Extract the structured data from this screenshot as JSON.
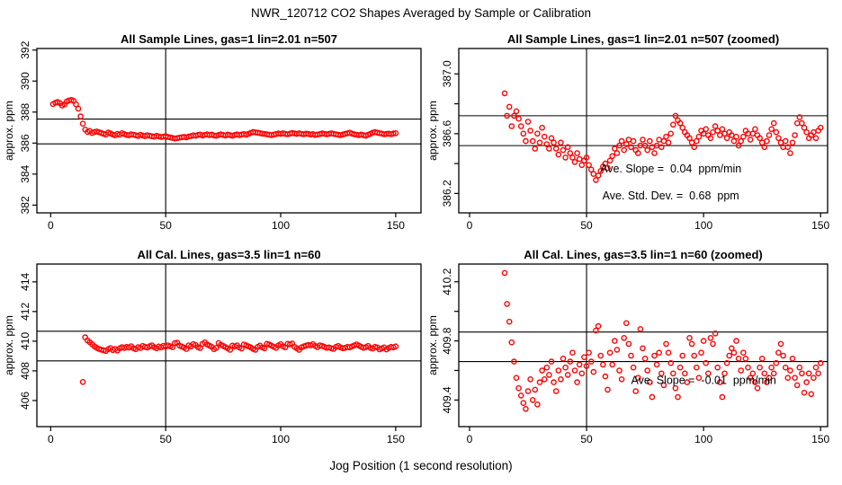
{
  "figure": {
    "title": "NWR_120712  CO2 Shapes Averaged by Sample or Calibration",
    "xlabel": "Jog Position (1 second resolution)",
    "background_color": "#ffffff",
    "axis_color": "#000000",
    "point_color": "#ff0000"
  },
  "chart_data": {
    "type": "scatter",
    "marker": "open-circle",
    "grid": "off",
    "panels": [
      {
        "title": "All Sample Lines, gas=1 lin=2.01 n=507",
        "ylabel": "approx. ppm",
        "series": "sample",
        "xlim": [
          -6,
          161
        ],
        "ylim": [
          381.5,
          392.1
        ],
        "xticks": [
          0,
          50,
          100,
          150
        ],
        "yticks": [
          {
            "v": 382,
            "label": "382"
          },
          {
            "v": 384,
            "label": "384"
          },
          {
            "v": 386,
            "label": "386"
          },
          {
            "v": 388,
            "label": "388"
          },
          {
            "v": 390,
            "label": "390"
          },
          {
            "v": 392,
            "label": "392"
          }
        ],
        "vlines": [
          50
        ],
        "hlines": [
          387.55,
          385.95
        ],
        "annotations": []
      },
      {
        "title": "All Sample Lines, gas=1 lin=2.01 n=507 (zoomed)",
        "ylabel": "approx. ppm",
        "series": "sample",
        "xlim": [
          -4.6,
          153
        ],
        "ylim": [
          386.07,
          387.17
        ],
        "xticks": [
          0,
          50,
          100,
          150
        ],
        "yticks": [
          {
            "v": 386.2,
            "label": "386.2"
          },
          {
            "v": 386.4,
            "label": ""
          },
          {
            "v": 386.6,
            "label": "386.6"
          },
          {
            "v": 386.8,
            "label": ""
          },
          {
            "v": 387.0,
            "label": "387.0"
          }
        ],
        "vlines": [
          50
        ],
        "hlines": [
          386.72,
          386.52
        ],
        "annotations": [
          {
            "x": 86,
            "y": 386.34,
            "text": "Ave. Slope =  0.04  ppm/min"
          },
          {
            "x": 86,
            "y": 386.16,
            "text": "Ave. Std. Dev. =  0.68  ppm"
          }
        ]
      },
      {
        "title": "All Cal. Lines, gas=3.5 lin=1 n=60",
        "ylabel": "approx. ppm",
        "series": "cal",
        "xlim": [
          -6,
          161
        ],
        "ylim": [
          404.24,
          415.2
        ],
        "xticks": [
          0,
          50,
          100,
          150
        ],
        "yticks": [
          {
            "v": 406,
            "label": "406"
          },
          {
            "v": 408,
            "label": "408"
          },
          {
            "v": 410,
            "label": "410"
          },
          {
            "v": 412,
            "label": "412"
          },
          {
            "v": 414,
            "label": "414"
          }
        ],
        "vlines": [
          50
        ],
        "hlines": [
          410.67,
          408.67
        ],
        "annotations": []
      },
      {
        "title": "All Cal. Lines, gas=3.5 lin=1 n=60 (zoomed)",
        "ylabel": "approx. ppm",
        "series": "cal",
        "xlim": [
          -4.6,
          153
        ],
        "ylim": [
          409.22,
          410.32
        ],
        "xticks": [
          0,
          50,
          100,
          150
        ],
        "yticks": [
          {
            "v": 409.4,
            "label": "409.4"
          },
          {
            "v": 409.6,
            "label": ""
          },
          {
            "v": 409.8,
            "label": "409.8"
          },
          {
            "v": 410.0,
            "label": ""
          },
          {
            "v": 410.2,
            "label": "410.2"
          }
        ],
        "vlines": [
          50
        ],
        "hlines": [
          409.86,
          409.66
        ],
        "annotations": [
          {
            "x": 100,
            "y": 409.51,
            "text": "Ave. Slope =  -0.01  ppm/min"
          }
        ]
      }
    ],
    "series": {
      "sample": [
        [
          1,
          388.52
        ],
        [
          2,
          388.6
        ],
        [
          3,
          388.65
        ],
        [
          4,
          388.58
        ],
        [
          5,
          388.42
        ],
        [
          6,
          388.5
        ],
        [
          7,
          388.68
        ],
        [
          8,
          388.75
        ],
        [
          9,
          388.78
        ],
        [
          10,
          388.72
        ],
        [
          11,
          388.5
        ],
        [
          12,
          388.22
        ],
        [
          13,
          387.72
        ],
        [
          14,
          387.25
        ],
        [
          15,
          386.87
        ],
        [
          16,
          386.72
        ],
        [
          17,
          386.78
        ],
        [
          18,
          386.65
        ],
        [
          19,
          386.72
        ],
        [
          20,
          386.75
        ],
        [
          21,
          386.7
        ],
        [
          22,
          386.65
        ],
        [
          23,
          386.6
        ],
        [
          24,
          386.55
        ],
        [
          25,
          386.68
        ],
        [
          26,
          386.62
        ],
        [
          27,
          386.55
        ],
        [
          28,
          386.5
        ],
        [
          29,
          386.6
        ],
        [
          30,
          386.54
        ],
        [
          31,
          386.64
        ],
        [
          32,
          386.58
        ],
        [
          33,
          386.53
        ],
        [
          34,
          386.5
        ],
        [
          35,
          386.57
        ],
        [
          36,
          386.54
        ],
        [
          37,
          386.5
        ],
        [
          38,
          386.46
        ],
        [
          39,
          386.54
        ],
        [
          40,
          386.49
        ],
        [
          41,
          386.44
        ],
        [
          42,
          386.51
        ],
        [
          43,
          386.47
        ],
        [
          44,
          386.44
        ],
        [
          45,
          386.41
        ],
        [
          46,
          386.47
        ],
        [
          47,
          386.43
        ],
        [
          48,
          386.39
        ],
        [
          49,
          386.42
        ],
        [
          50,
          386.44
        ],
        [
          51,
          386.39
        ],
        [
          52,
          386.36
        ],
        [
          53,
          386.33
        ],
        [
          54,
          386.29
        ],
        [
          55,
          386.32
        ],
        [
          56,
          386.35
        ],
        [
          57,
          386.38
        ],
        [
          58,
          386.4
        ],
        [
          59,
          386.37
        ],
        [
          60,
          386.42
        ],
        [
          61,
          386.45
        ],
        [
          62,
          386.5
        ],
        [
          63,
          386.47
        ],
        [
          64,
          386.52
        ],
        [
          65,
          386.55
        ],
        [
          66,
          386.49
        ],
        [
          67,
          386.53
        ],
        [
          68,
          386.56
        ],
        [
          69,
          386.51
        ],
        [
          70,
          386.55
        ],
        [
          71,
          386.49
        ],
        [
          72,
          386.47
        ],
        [
          73,
          386.52
        ],
        [
          74,
          386.56
        ],
        [
          75,
          386.52
        ],
        [
          76,
          386.49
        ],
        [
          77,
          386.55
        ],
        [
          78,
          386.51
        ],
        [
          79,
          386.47
        ],
        [
          80,
          386.52
        ],
        [
          81,
          386.56
        ],
        [
          82,
          386.51
        ],
        [
          83,
          386.55
        ],
        [
          84,
          386.58
        ],
        [
          85,
          386.54
        ],
        [
          86,
          386.6
        ],
        [
          87,
          386.66
        ],
        [
          88,
          386.72
        ],
        [
          89,
          386.69
        ],
        [
          90,
          386.67
        ],
        [
          91,
          386.64
        ],
        [
          92,
          386.61
        ],
        [
          93,
          386.59
        ],
        [
          94,
          386.57
        ],
        [
          95,
          386.54
        ],
        [
          96,
          386.51
        ],
        [
          97,
          386.55
        ],
        [
          98,
          386.58
        ],
        [
          99,
          386.62
        ],
        [
          100,
          386.6
        ],
        [
          101,
          386.63
        ],
        [
          102,
          386.59
        ],
        [
          103,
          386.57
        ],
        [
          104,
          386.61
        ],
        [
          105,
          386.65
        ],
        [
          106,
          386.62
        ],
        [
          107,
          386.59
        ],
        [
          108,
          386.63
        ],
        [
          109,
          386.6
        ],
        [
          110,
          386.57
        ],
        [
          111,
          386.61
        ],
        [
          112,
          386.59
        ],
        [
          113,
          386.55
        ],
        [
          114,
          386.58
        ],
        [
          115,
          386.52
        ],
        [
          116,
          386.55
        ],
        [
          117,
          386.58
        ],
        [
          118,
          386.62
        ],
        [
          119,
          386.6
        ],
        [
          120,
          386.56
        ],
        [
          121,
          386.6
        ],
        [
          122,
          386.63
        ],
        [
          123,
          386.59
        ],
        [
          124,
          386.57
        ],
        [
          125,
          386.54
        ],
        [
          126,
          386.51
        ],
        [
          127,
          386.55
        ],
        [
          128,
          386.59
        ],
        [
          129,
          386.63
        ],
        [
          130,
          386.67
        ],
        [
          131,
          386.61
        ],
        [
          132,
          386.57
        ],
        [
          133,
          386.54
        ],
        [
          134,
          386.51
        ],
        [
          135,
          386.55
        ],
        [
          136,
          386.51
        ],
        [
          137,
          386.47
        ],
        [
          138,
          386.54
        ],
        [
          139,
          386.59
        ],
        [
          140,
          386.67
        ],
        [
          141,
          386.71
        ],
        [
          142,
          386.67
        ],
        [
          143,
          386.64
        ],
        [
          144,
          386.61
        ],
        [
          145,
          386.57
        ],
        [
          146,
          386.59
        ],
        [
          147,
          386.61
        ],
        [
          148,
          386.57
        ],
        [
          149,
          386.62
        ],
        [
          150,
          386.64
        ]
      ],
      "cal": [
        [
          14,
          407.25
        ],
        [
          15,
          410.26
        ],
        [
          16,
          410.05
        ],
        [
          17,
          409.93
        ],
        [
          18,
          409.79
        ],
        [
          19,
          409.66
        ],
        [
          20,
          409.55
        ],
        [
          21,
          409.48
        ],
        [
          22,
          409.43
        ],
        [
          23,
          409.38
        ],
        [
          24,
          409.34
        ],
        [
          25,
          409.46
        ],
        [
          26,
          409.54
        ],
        [
          27,
          409.4
        ],
        [
          28,
          409.47
        ],
        [
          29,
          409.37
        ],
        [
          30,
          409.52
        ],
        [
          31,
          409.6
        ],
        [
          32,
          409.54
        ],
        [
          33,
          409.62
        ],
        [
          34,
          409.57
        ],
        [
          35,
          409.66
        ],
        [
          36,
          409.52
        ],
        [
          37,
          409.46
        ],
        [
          38,
          409.6
        ],
        [
          39,
          409.54
        ],
        [
          40,
          409.68
        ],
        [
          41,
          409.62
        ],
        [
          42,
          409.57
        ],
        [
          43,
          409.66
        ],
        [
          44,
          409.72
        ],
        [
          45,
          409.6
        ],
        [
          46,
          409.52
        ],
        [
          47,
          409.64
        ],
        [
          48,
          409.58
        ],
        [
          49,
          409.69
        ],
        [
          50,
          409.63
        ],
        [
          51,
          409.72
        ],
        [
          52,
          409.66
        ],
        [
          53,
          409.59
        ],
        [
          54,
          409.87
        ],
        [
          55,
          409.9
        ],
        [
          56,
          409.7
        ],
        [
          57,
          409.64
        ],
        [
          58,
          409.56
        ],
        [
          59,
          409.47
        ],
        [
          60,
          409.72
        ],
        [
          61,
          409.64
        ],
        [
          62,
          409.8
        ],
        [
          63,
          409.74
        ],
        [
          64,
          409.6
        ],
        [
          65,
          409.54
        ],
        [
          66,
          409.82
        ],
        [
          67,
          409.92
        ],
        [
          68,
          409.78
        ],
        [
          69,
          409.7
        ],
        [
          70,
          409.62
        ],
        [
          71,
          409.46
        ],
        [
          72,
          409.55
        ],
        [
          73,
          409.88
        ],
        [
          74,
          409.75
        ],
        [
          75,
          409.68
        ],
        [
          76,
          409.6
        ],
        [
          77,
          409.52
        ],
        [
          78,
          409.42
        ],
        [
          79,
          409.7
        ],
        [
          80,
          409.64
        ],
        [
          81,
          409.72
        ],
        [
          82,
          409.58
        ],
        [
          83,
          409.5
        ],
        [
          84,
          409.78
        ],
        [
          85,
          409.72
        ],
        [
          86,
          409.65
        ],
        [
          87,
          409.58
        ],
        [
          88,
          409.48
        ],
        [
          89,
          409.42
        ],
        [
          90,
          409.62
        ],
        [
          91,
          409.7
        ],
        [
          92,
          409.58
        ],
        [
          93,
          409.52
        ],
        [
          94,
          409.82
        ],
        [
          95,
          409.78
        ],
        [
          96,
          409.7
        ],
        [
          97,
          409.62
        ],
        [
          98,
          409.55
        ],
        [
          99,
          409.72
        ],
        [
          100,
          409.8
        ],
        [
          101,
          409.65
        ],
        [
          102,
          409.58
        ],
        [
          103,
          409.82
        ],
        [
          104,
          409.78
        ],
        [
          105,
          409.85
        ],
        [
          106,
          409.62
        ],
        [
          107,
          409.52
        ],
        [
          108,
          409.42
        ],
        [
          109,
          409.58
        ],
        [
          110,
          409.65
        ],
        [
          111,
          409.7
        ],
        [
          112,
          409.75
        ],
        [
          113,
          409.72
        ],
        [
          114,
          409.8
        ],
        [
          115,
          409.68
        ],
        [
          116,
          409.6
        ],
        [
          117,
          409.72
        ],
        [
          118,
          409.68
        ],
        [
          119,
          409.62
        ],
        [
          120,
          409.55
        ],
        [
          121,
          409.58
        ],
        [
          122,
          409.52
        ],
        [
          123,
          409.48
        ],
        [
          124,
          409.62
        ],
        [
          125,
          409.68
        ],
        [
          126,
          409.58
        ],
        [
          127,
          409.52
        ],
        [
          128,
          409.55
        ],
        [
          129,
          409.62
        ],
        [
          130,
          409.58
        ],
        [
          131,
          409.65
        ],
        [
          132,
          409.72
        ],
        [
          133,
          409.78
        ],
        [
          134,
          409.7
        ],
        [
          135,
          409.62
        ],
        [
          136,
          409.55
        ],
        [
          137,
          409.6
        ],
        [
          138,
          409.68
        ],
        [
          139,
          409.55
        ],
        [
          140,
          409.5
        ],
        [
          141,
          409.62
        ],
        [
          142,
          409.58
        ],
        [
          143,
          409.45
        ],
        [
          144,
          409.52
        ],
        [
          145,
          409.58
        ],
        [
          146,
          409.44
        ],
        [
          147,
          409.55
        ],
        [
          148,
          409.62
        ],
        [
          149,
          409.58
        ],
        [
          150,
          409.65
        ]
      ]
    }
  }
}
